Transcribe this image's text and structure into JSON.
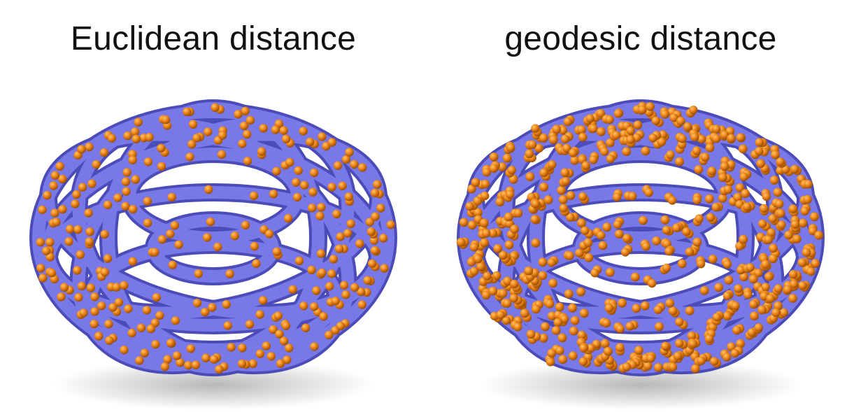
{
  "panels": [
    {
      "title": "Euclidean distance",
      "sampling": "euclidean",
      "sample_density": "sparse"
    },
    {
      "title": "geodesic distance",
      "sampling": "geodesic",
      "sample_density": "dense"
    }
  ],
  "colors": {
    "surface": "#7878e8",
    "surface_shadow": "#4c4cb8",
    "sample_point": "#f08a1e",
    "sample_point_highlight": "#ffc46a",
    "sample_point_dark": "#9a4a00",
    "background": "#ffffff"
  }
}
